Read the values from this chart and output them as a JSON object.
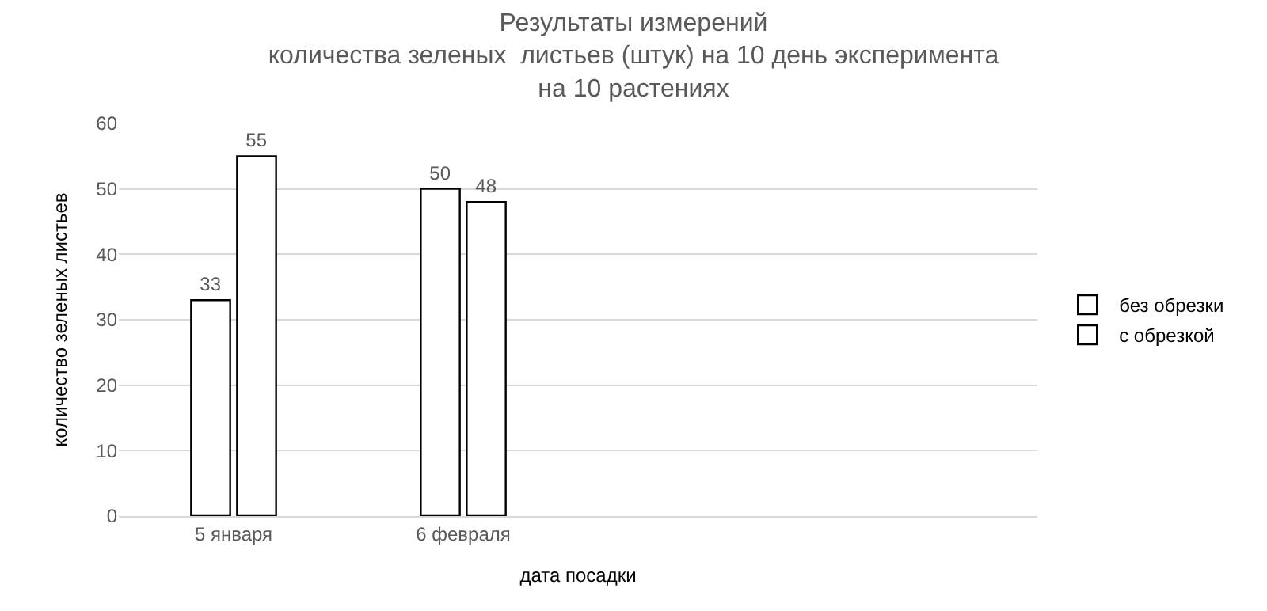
{
  "chart_data": {
    "type": "bar",
    "title": "Результаты измерений\nколичества зеленых  листьев (штук) на 10 день эксперимента\nна 10 растениях",
    "xlabel": "дата посадки",
    "ylabel": "количество зеленых листьев",
    "categories": [
      "5 января",
      "6 февраля",
      null,
      null
    ],
    "series": [
      {
        "name": "без обрезки",
        "color": "#ffffff",
        "values": [
          33,
          50,
          null,
          null
        ]
      },
      {
        "name": "с обрезкой",
        "color": "#ffffff",
        "values": [
          55,
          48,
          null,
          null
        ]
      }
    ],
    "ylim": [
      0,
      60
    ],
    "yticks": [
      0,
      10,
      20,
      30,
      40,
      50,
      60
    ],
    "grid": "y",
    "legend": "right",
    "data_labels": true
  }
}
